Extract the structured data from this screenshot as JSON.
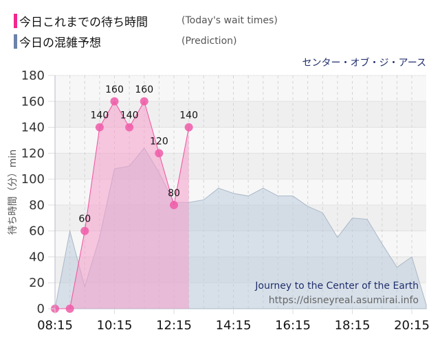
{
  "legend": [
    {
      "label_jp": "今日これまでの待ち時間",
      "label_en": "(Today's wait times)",
      "color": "#f0288c"
    },
    {
      "label_jp": "今日の混雑予想",
      "label_en": "(Prediction)",
      "color": "#6b82aa"
    }
  ],
  "attraction_name_jp": "センター・オブ・ジ・アース",
  "watermark": {
    "title": "Journey to the Center of the Earth",
    "url": "https://disneyreal.asumirai.info"
  },
  "chart_data": {
    "type": "area",
    "title": "センター・オブ・ジ・アース",
    "xlabel": "",
    "ylabel": "待ち時間（分）min",
    "ylim": [
      0,
      180
    ],
    "yticks": [
      0,
      20,
      40,
      60,
      80,
      100,
      120,
      140,
      160,
      180
    ],
    "xticks": [
      "08:15",
      "10:15",
      "12:15",
      "14:15",
      "16:15",
      "18:15",
      "20:15"
    ],
    "x_start": "08:15",
    "x_step_minutes": 30,
    "grid": true,
    "legend_position": "top-left",
    "series": [
      {
        "name": "今日これまでの待ち時間 (Today's wait times)",
        "color": "#f0288c",
        "x": [
          "08:15",
          "08:45",
          "09:15",
          "09:45",
          "10:15",
          "10:45",
          "11:15",
          "11:45",
          "12:15",
          "12:45"
        ],
        "values": [
          0,
          0,
          60,
          140,
          160,
          140,
          160,
          120,
          80,
          140
        ],
        "show_markers": true,
        "show_labels": [
          false,
          false,
          true,
          true,
          true,
          true,
          true,
          true,
          true,
          true
        ]
      },
      {
        "name": "今日の混雑予想 (Prediction)",
        "color": "#6b82aa",
        "x": [
          "08:15",
          "08:45",
          "09:15",
          "09:45",
          "10:15",
          "10:45",
          "11:15",
          "11:45",
          "12:15",
          "12:45",
          "13:15",
          "13:45",
          "14:15",
          "14:45",
          "15:15",
          "15:45",
          "16:15",
          "16:45",
          "17:15",
          "17:45",
          "18:15",
          "18:45",
          "19:15",
          "19:45",
          "20:15",
          "20:45"
        ],
        "values": [
          0,
          60,
          17,
          55,
          108,
          110,
          124,
          105,
          82,
          82,
          84,
          93,
          89,
          87,
          93,
          87,
          87,
          79,
          74,
          55,
          70,
          69,
          50,
          32,
          40,
          3
        ]
      }
    ]
  }
}
